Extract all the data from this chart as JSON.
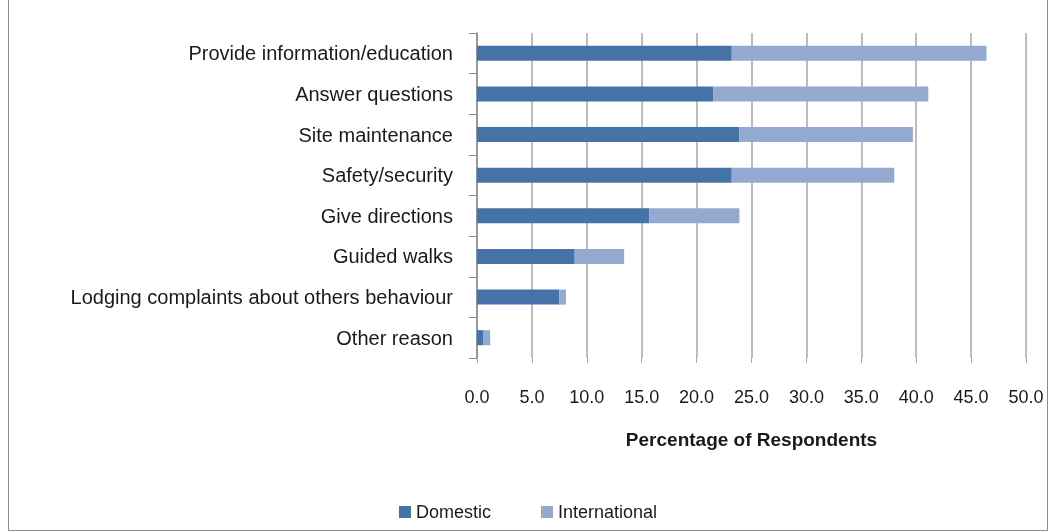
{
  "chart_data": {
    "type": "bar",
    "orientation": "horizontal",
    "stacked": true,
    "categories": [
      "Provide information/education",
      "Answer questions",
      "Site maintenance",
      "Safety/security",
      "Give directions",
      "Guided walks",
      "Lodging complaints about others behaviour",
      "Other reason"
    ],
    "series": [
      {
        "name": "Domestic",
        "color": "#4673a7",
        "values": [
          23.2,
          21.5,
          23.9,
          23.2,
          15.7,
          8.9,
          7.5,
          0.6
        ]
      },
      {
        "name": "International",
        "color": "#94a9d0",
        "values": [
          23.2,
          19.6,
          15.8,
          14.8,
          8.2,
          4.5,
          0.6,
          0.6
        ]
      }
    ],
    "xlabel": "Percentage of Respondents",
    "xlim": [
      0,
      50
    ],
    "xticks": [
      {
        "value": 0,
        "label": "0.0"
      },
      {
        "value": 5,
        "label": "5.0"
      },
      {
        "value": 10,
        "label": "10.0"
      },
      {
        "value": 15,
        "label": "15.0"
      },
      {
        "value": 20,
        "label": "20.0"
      },
      {
        "value": 25,
        "label": "25.0"
      },
      {
        "value": 30,
        "label": "30.0"
      },
      {
        "value": 35,
        "label": "35.0"
      },
      {
        "value": 40,
        "label": "40.0"
      },
      {
        "value": 45,
        "label": "45.0"
      },
      {
        "value": 50,
        "label": "50.0"
      }
    ],
    "grid": "x",
    "legend": "bottom"
  }
}
